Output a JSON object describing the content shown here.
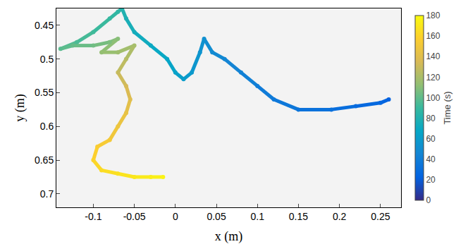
{
  "chart_data": {
    "type": "scatter",
    "x_label": "x (m)",
    "y_label": "y (m)",
    "colorbar_title": "Time (s)",
    "x": [
      0.26,
      0.25,
      0.22,
      0.19,
      0.15,
      0.12,
      0.1,
      0.08,
      0.06,
      0.045,
      0.035,
      0.03,
      0.02,
      0.01,
      0.0,
      -0.01,
      -0.03,
      -0.05,
      -0.06,
      -0.065,
      -0.07,
      -0.08,
      -0.1,
      -0.12,
      -0.14,
      -0.125,
      -0.1,
      -0.08,
      -0.07,
      -0.09,
      -0.07,
      -0.05,
      -0.06,
      -0.07,
      -0.06,
      -0.055,
      -0.06,
      -0.07,
      -0.08,
      -0.095,
      -0.1,
      -0.09,
      -0.07,
      -0.05,
      -0.03,
      -0.015
    ],
    "y": [
      0.56,
      0.565,
      0.57,
      0.575,
      0.575,
      0.56,
      0.54,
      0.52,
      0.5,
      0.49,
      0.47,
      0.49,
      0.52,
      0.53,
      0.52,
      0.5,
      0.48,
      0.46,
      0.44,
      0.425,
      0.43,
      0.44,
      0.46,
      0.475,
      0.485,
      0.48,
      0.48,
      0.475,
      0.47,
      0.49,
      0.49,
      0.48,
      0.5,
      0.52,
      0.54,
      0.56,
      0.58,
      0.6,
      0.62,
      0.63,
      0.65,
      0.665,
      0.67,
      0.675,
      0.675,
      0.675
    ],
    "time": [
      22,
      25,
      28,
      31,
      34,
      37,
      40,
      43,
      46,
      49,
      52,
      55,
      58,
      61,
      64,
      67,
      70,
      74,
      78,
      82,
      86,
      89,
      92,
      95,
      98,
      101,
      104,
      107,
      110,
      113,
      116,
      119,
      124,
      129,
      134,
      139,
      144,
      148,
      152,
      156,
      160,
      164,
      167,
      170,
      173,
      176
    ],
    "xlim": [
      -0.145,
      0.275
    ],
    "xticks": [
      -0.1,
      -0.05,
      0,
      0.05,
      0.1,
      0.15,
      0.2,
      0.25
    ],
    "ylim": [
      0.72,
      0.425
    ],
    "yticks": [
      0.45,
      0.5,
      0.55,
      0.6,
      0.65,
      0.7
    ],
    "colorbar_lim": [
      0,
      180
    ],
    "colorbar_ticks": [
      0,
      20,
      40,
      60,
      80,
      100,
      120,
      140,
      160,
      180
    ],
    "grid": false
  }
}
